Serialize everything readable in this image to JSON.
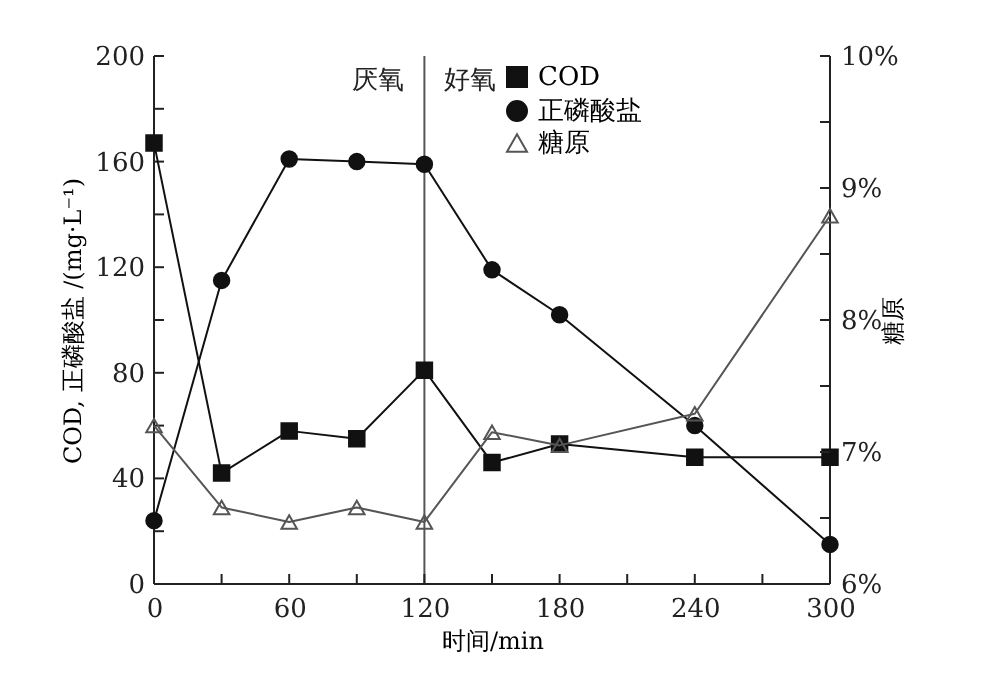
{
  "chart_data": {
    "type": "line",
    "xlabel": "时间/min",
    "ylabel": "COD, 正磷酸盐 /(mg·L⁻¹)",
    "y2label": "糖原",
    "x": [
      0,
      30,
      60,
      90,
      120,
      150,
      180,
      240,
      300
    ],
    "xlim": [
      0,
      300
    ],
    "xticks": [
      0,
      {
        "value": 30,
        "label": null
      },
      60,
      {
        "value": 90,
        "label": null
      },
      120,
      {
        "value": 150,
        "label": null
      },
      180,
      {
        "value": 210,
        "label": null
      },
      240,
      {
        "value": 270,
        "label": null
      },
      300
    ],
    "ylim": [
      0,
      200
    ],
    "yticks": [
      0,
      {
        "value": 20,
        "label": null
      },
      40,
      {
        "value": 60,
        "label": null
      },
      80,
      {
        "value": 100,
        "label": null
      },
      120,
      {
        "value": 140,
        "label": null
      },
      160,
      {
        "value": 180,
        "label": null
      },
      200
    ],
    "y2lim": [
      6,
      10
    ],
    "y2ticks": [
      {
        "value": 6,
        "label": "6%"
      },
      {
        "value": 6.5,
        "label": null
      },
      {
        "value": 7,
        "label": "7%"
      },
      {
        "value": 7.5,
        "label": null
      },
      {
        "value": 8,
        "label": "8%"
      },
      {
        "value": 8.5,
        "label": null
      },
      {
        "value": 9,
        "label": "9%"
      },
      {
        "value": 9.5,
        "label": null
      },
      {
        "value": 10,
        "label": "10%"
      }
    ],
    "series": [
      {
        "name": "COD",
        "color": "#111111",
        "marker": "square",
        "values": [
          167,
          42,
          58,
          55,
          81,
          46,
          53,
          48,
          48
        ]
      },
      {
        "name": "正磷酸盐",
        "color": "#111111",
        "marker": "circle",
        "values": [
          24,
          115,
          161,
          160,
          159,
          119,
          102,
          60,
          15
        ]
      },
      {
        "name": "糖原",
        "color": "#555555",
        "marker": "triangle",
        "axis": "y2",
        "values": [
          7.2,
          6.58,
          6.47,
          6.58,
          6.47,
          7.15,
          7.05,
          7.29,
          8.79
        ]
      }
    ],
    "ref_lines": [
      {
        "axis": "x",
        "value": 120,
        "color": "#555555"
      }
    ],
    "annotations": [
      "厌氧",
      "好氧"
    ],
    "grid": false,
    "legend": "top right",
    "line_style": "solid"
  }
}
